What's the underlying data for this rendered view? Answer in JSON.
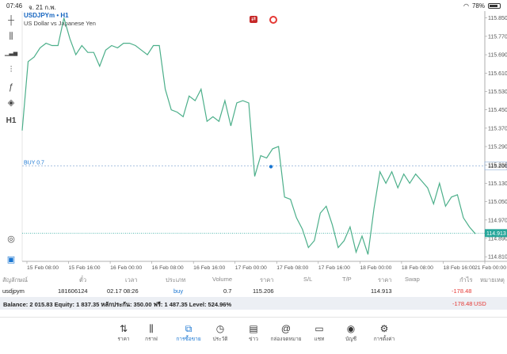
{
  "status_bar": {
    "time": "07:46",
    "date": "จ. 21 ก.พ.",
    "battery": "78%"
  },
  "chart": {
    "symbol": "USDJPYm • H1",
    "description": "US Dollar vs Japanese Yen",
    "buy_label": "BUY 0.7",
    "buy_price_tag": "115.206",
    "current_price_tag": "114.913",
    "accent_color": "#1976d2",
    "current_tag_color": "#26a69a",
    "line_color": "#4caf8a"
  },
  "chart_data": {
    "type": "line",
    "y_range": [
      114.79,
      115.88
    ],
    "y_ticks": [
      "115.850",
      "115.770",
      "115.690",
      "115.610",
      "115.530",
      "115.450",
      "115.370",
      "115.290",
      "115.210",
      "115.130",
      "115.050",
      "114.970",
      "114.890",
      "114.810"
    ],
    "x_ticks": [
      "15 Feb 08:00",
      "15 Feb 16:00",
      "16 Feb 00:00",
      "16 Feb 08:00",
      "16 Feb 16:00",
      "17 Feb 00:00",
      "17 Feb 08:00",
      "17 Feb 16:00",
      "18 Feb 00:00",
      "18 Feb 08:00",
      "18 Feb 16:00",
      "21 Feb 00:00"
    ],
    "series": [
      {
        "values": [
          115.36,
          115.66,
          115.68,
          115.72,
          115.74,
          115.73,
          115.73,
          115.85,
          115.76,
          115.69,
          115.73,
          115.7,
          115.7,
          115.64,
          115.71,
          115.73,
          115.72,
          115.74,
          115.74,
          115.73,
          115.71,
          115.69,
          115.73,
          115.73,
          115.54,
          115.45,
          115.44,
          115.42,
          115.51,
          115.49,
          115.54,
          115.4,
          115.42,
          115.4,
          115.49,
          115.38,
          115.48,
          115.49,
          115.48,
          115.16,
          115.25,
          115.24,
          115.28,
          115.29,
          115.07,
          115.06,
          114.98,
          114.93,
          114.85,
          114.88,
          115.0,
          115.03,
          114.95,
          114.85,
          114.88,
          114.94,
          114.83,
          114.9,
          114.82,
          115.02,
          115.18,
          115.13,
          115.18,
          115.11,
          115.17,
          115.13,
          115.17,
          115.14,
          115.11,
          115.04,
          115.13,
          115.03,
          115.07,
          115.08,
          114.98,
          114.94,
          114.91
        ]
      }
    ],
    "buy_price": 115.206,
    "current_price": 114.913
  },
  "left_tools": [
    {
      "icon": "crosshair-icon",
      "glyph": "┼"
    },
    {
      "icon": "candles-icon",
      "glyph": "⫼"
    },
    {
      "icon": "bars-icon",
      "glyph": "▁▃▅"
    },
    {
      "icon": "indicators-icon",
      "glyph": "⫶"
    },
    {
      "icon": "function-icon",
      "glyph": "ƒ"
    },
    {
      "icon": "objects-icon",
      "glyph": "◈"
    },
    {
      "icon": "timeframe-label",
      "glyph": "H1"
    }
  ],
  "table": {
    "headers": [
      "สัญลักษณ์",
      "ตั๋ว",
      "เวลา",
      "ประเภท",
      "Volume",
      "ราคา",
      "S/L",
      "T/P",
      "ราคา",
      "Swap",
      "กำไร",
      "หมายเหตุ"
    ],
    "row": [
      "usdjpym",
      "181606124",
      "02.17 08:26",
      "buy",
      "0.7",
      "115.206",
      "",
      "",
      "114.913",
      "",
      "-178.48",
      ""
    ]
  },
  "balance": {
    "text": "Balance: 2 015.83 Equity: 1 837.35 หลักประกัน: 350.00 ฟรี: 1 487.35 Level: 524.96%",
    "profit": "-178.48",
    "currency": "USD"
  },
  "nav": [
    {
      "label": "ราคา",
      "icon": "updown-arrows-icon",
      "glyph": "⇅"
    },
    {
      "label": "กราฟ",
      "icon": "candles-icon",
      "glyph": "⫼"
    },
    {
      "label": "การซื้อขาย",
      "icon": "trade-chart-icon",
      "glyph": "⧉",
      "active": true
    },
    {
      "label": "ประวัติ",
      "icon": "history-icon",
      "glyph": "◷"
    },
    {
      "label": "ข่าว",
      "icon": "news-icon",
      "glyph": "▤"
    },
    {
      "label": "กล่องจดหมาย",
      "icon": "at-icon",
      "glyph": "@"
    },
    {
      "label": "แชท",
      "icon": "chat-icon",
      "glyph": "▭"
    },
    {
      "label": "บัญชี",
      "icon": "account-icon",
      "glyph": "◉"
    },
    {
      "label": "การตั้งค่า",
      "icon": "gear-icon",
      "glyph": "⚙"
    }
  ]
}
